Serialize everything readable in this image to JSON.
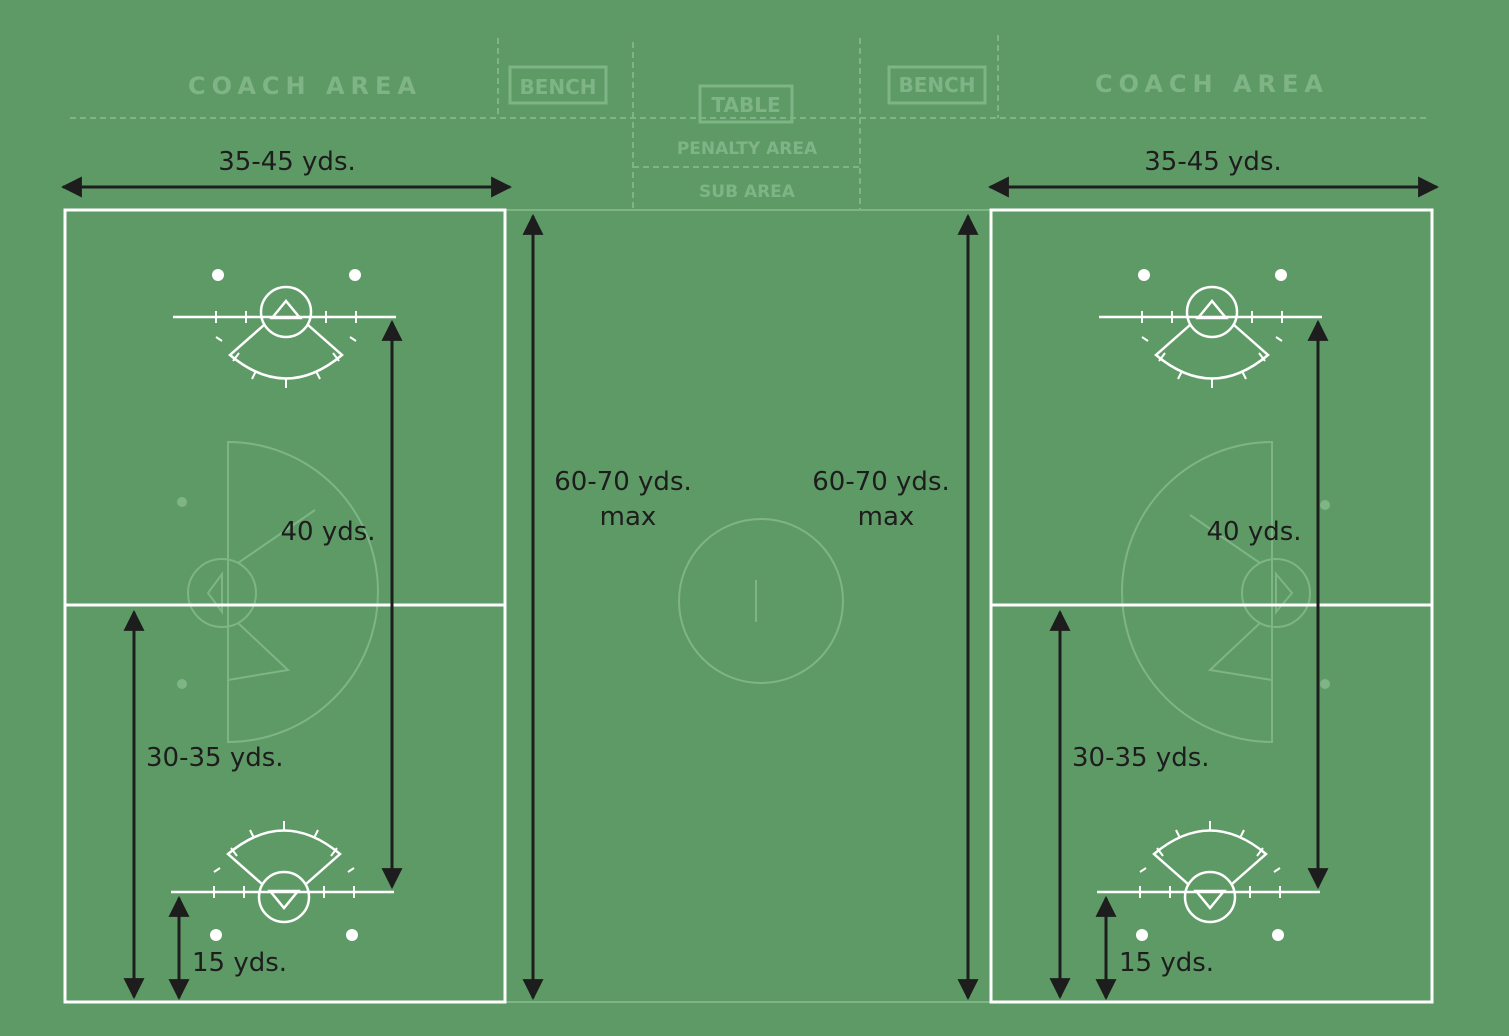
{
  "colors": {
    "background": "#5e9a66",
    "lines": "#ffffff",
    "faint": "#7fb487",
    "dimension": "#1d1d1d"
  },
  "sideline": {
    "coach_area_left": "COACH AREA",
    "bench_left": "BENCH",
    "table": "TABLE",
    "penalty_area": "PENALTY AREA",
    "sub_area": "SUB AREA",
    "bench_right": "BENCH",
    "coach_area_right": "COACH AREA"
  },
  "dimensions": {
    "left_field": {
      "width": "35-45 yds.",
      "goal_to_goal": "40 yds.",
      "goal_to_end_region": "30-35 yds.",
      "goal_to_endline": "15 yds.",
      "length_line1": "60-70 yds.",
      "length_line2": "max"
    },
    "right_field": {
      "width": "35-45 yds.",
      "goal_to_goal": "40 yds.",
      "goal_to_end_region": "30-35 yds.",
      "goal_to_endline": "15 yds.",
      "length_line1": "60-70 yds.",
      "length_line2": "max"
    }
  }
}
